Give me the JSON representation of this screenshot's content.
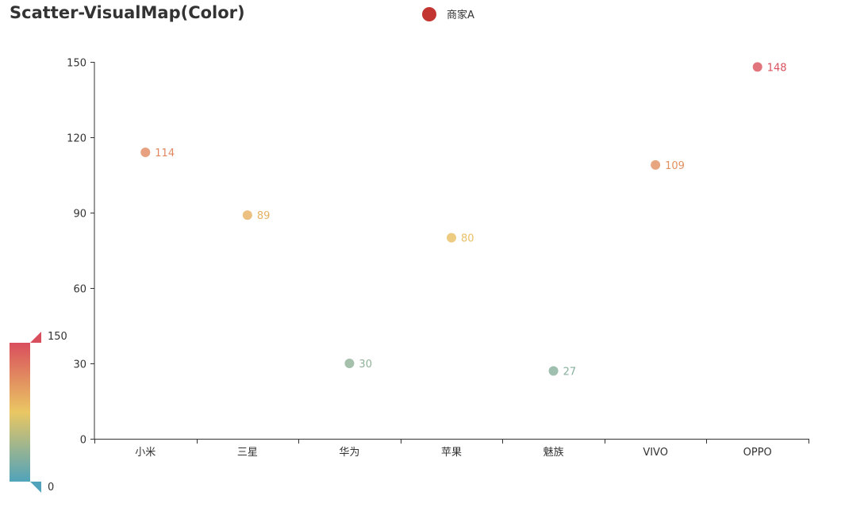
{
  "chart_data": {
    "type": "scatter",
    "title": "Scatter-VisualMap(Color)",
    "categories": [
      "小米",
      "三星",
      "华为",
      "苹果",
      "魅族",
      "VIVO",
      "OPPO"
    ],
    "series": [
      {
        "name": "商家A",
        "values": [
          114,
          89,
          30,
          80,
          27,
          109,
          148
        ]
      }
    ],
    "ylim": [
      0,
      150
    ],
    "yticks": [
      "0",
      "30",
      "60",
      "90",
      "120",
      "150"
    ],
    "xlabel": "",
    "ylabel": "",
    "grid": false,
    "legend_position": "top-center",
    "visual_map": {
      "min": 0,
      "max": 150,
      "max_label": "150",
      "min_label": "0",
      "colors": [
        "#50a3ba",
        "#eac763",
        "#d94e5d"
      ]
    },
    "colors": {
      "legend_marker": "#c23531",
      "axis": "#333333"
    }
  }
}
